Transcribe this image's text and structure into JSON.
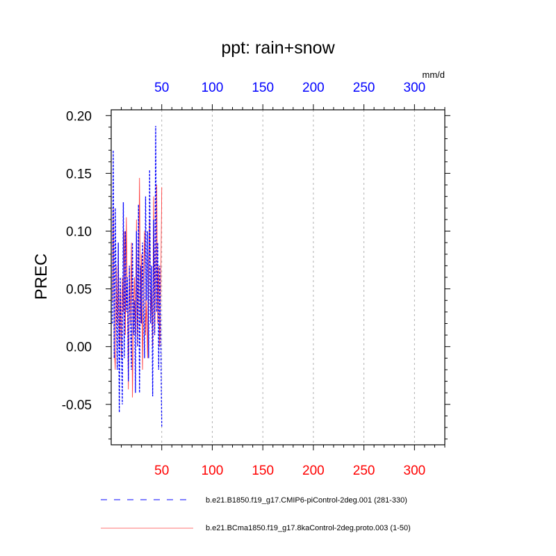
{
  "chart_data": {
    "type": "line",
    "title": "ppt: rain+snow",
    "ylabel": "PREC",
    "units_label": "mm/d",
    "xlim": [
      0,
      330
    ],
    "ylim": [
      -0.085,
      0.205
    ],
    "yticks": [
      -0.05,
      0.0,
      0.05,
      0.1,
      0.15,
      0.2
    ],
    "ytick_labels": [
      "-0.05",
      "0.00",
      "0.05",
      "0.10",
      "0.15",
      "0.20"
    ],
    "xticks": [
      50,
      100,
      150,
      200,
      250,
      300
    ],
    "xtick_labels": [
      "50",
      "100",
      "150",
      "200",
      "250",
      "300"
    ],
    "top_axis_color": "#0000ff",
    "bottom_axis_color": "#ff0000",
    "vertical_gridlines": true,
    "legend_position": "bottom",
    "series": [
      {
        "name": "b.e21.B1850.f19_g17.CMIP6-piControl-2deg.001 (281-330)",
        "color": "#0000ff",
        "style": "dashed",
        "x": [
          1,
          2,
          3,
          4,
          5,
          6,
          7,
          8,
          9,
          10,
          11,
          12,
          13,
          14,
          15,
          16,
          17,
          18,
          19,
          20,
          21,
          22,
          23,
          24,
          25,
          26,
          27,
          28,
          29,
          30,
          31,
          32,
          33,
          34,
          35,
          36,
          37,
          38,
          39,
          40,
          41,
          42,
          43,
          44,
          45,
          46,
          47,
          48,
          49,
          50
        ],
        "y": [
          0.02,
          0.17,
          -0.01,
          0.12,
          0.04,
          -0.02,
          0.09,
          -0.057,
          0.06,
          0.01,
          -0.05,
          0.125,
          -0.01,
          0.1,
          0.03,
          0.06,
          -0.03,
          0.07,
          0.02,
          -0.02,
          0.09,
          0.01,
          0.04,
          -0.04,
          0.1,
          0.0,
          0.123,
          -0.04,
          0.07,
          0.02,
          0.09,
          0.03,
          -0.01,
          0.13,
          0.04,
          0.1,
          -0.01,
          0.153,
          0.02,
          0.07,
          -0.043,
          0.11,
          0.01,
          0.191,
          0.03,
          0.09,
          -0.02,
          0.07,
          0.01,
          -0.07
        ]
      },
      {
        "name": "b.e21.BCma1850.f19_g17.8kaControl-2deg.proto.003 (1-50)",
        "color": "#ff4040",
        "style": "solid",
        "x": [
          1,
          2,
          3,
          4,
          5,
          6,
          7,
          8,
          9,
          10,
          11,
          12,
          13,
          14,
          15,
          16,
          17,
          18,
          19,
          20,
          21,
          22,
          23,
          24,
          25,
          26,
          27,
          28,
          29,
          30,
          31,
          32,
          33,
          34,
          35,
          36,
          37,
          38,
          39,
          40,
          41,
          42,
          43,
          44,
          45,
          46,
          47,
          48,
          49,
          50
        ],
        "y": [
          0.04,
          0.12,
          0.0,
          -0.02,
          0.07,
          0.02,
          0.09,
          0.0,
          0.05,
          -0.01,
          0.06,
          0.03,
          0.1,
          0.01,
          0.112,
          0.04,
          -0.037,
          0.07,
          0.02,
          0.09,
          -0.044,
          0.03,
          0.06,
          0.01,
          0.11,
          0.0,
          0.05,
          0.146,
          0.02,
          0.08,
          -0.02,
          0.06,
          0.1,
          0.01,
          0.04,
          -0.01,
          0.07,
          0.11,
          0.02,
          0.05,
          0.0,
          0.13,
          0.01,
          0.06,
          0.14,
          0.02,
          0.07,
          0.0,
          0.05,
          0.138
        ]
      }
    ]
  }
}
